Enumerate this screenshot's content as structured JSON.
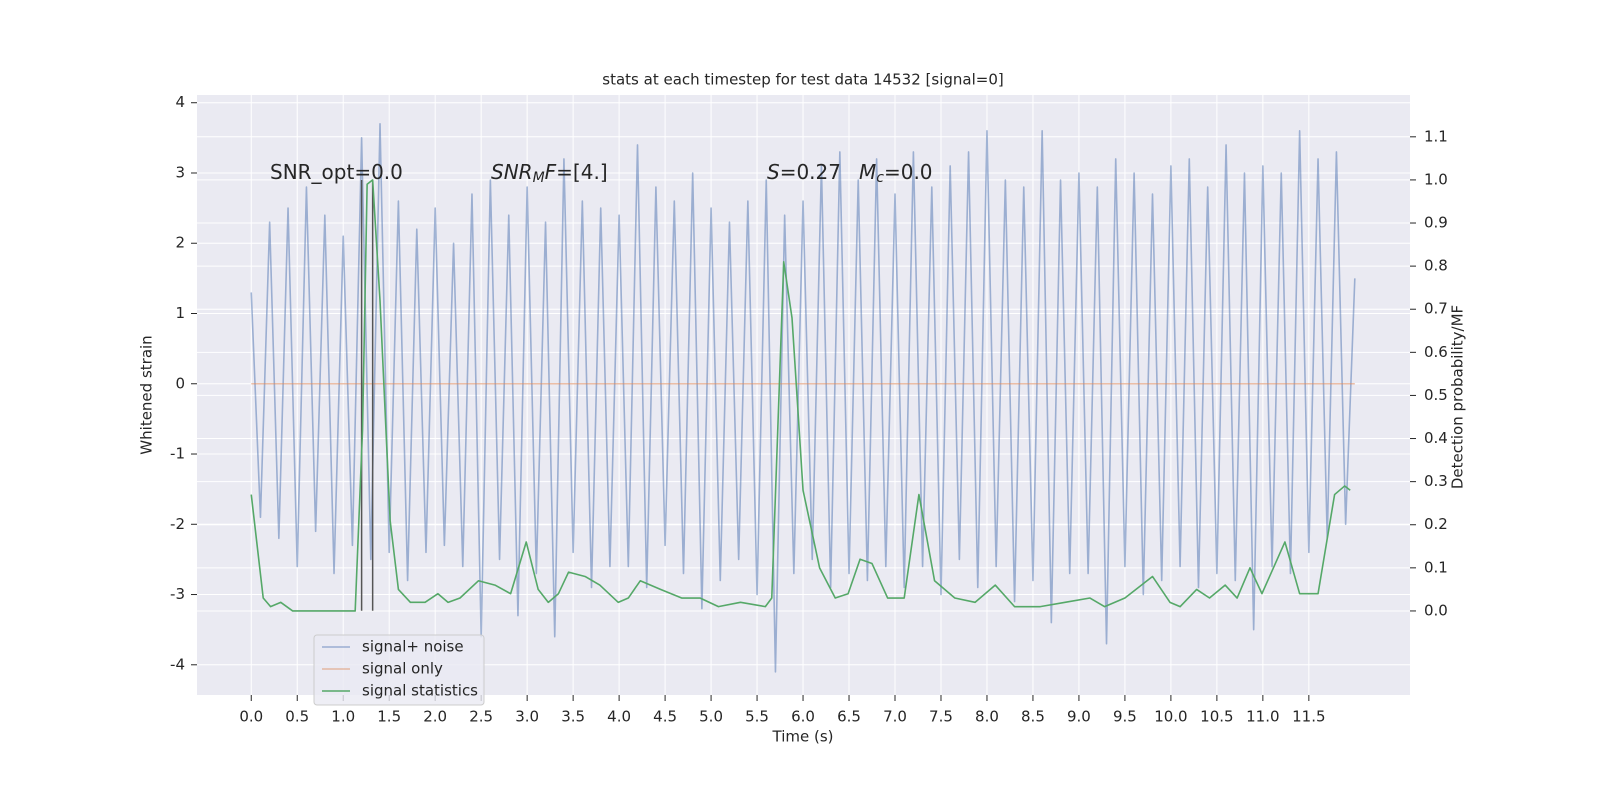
{
  "chart_data": {
    "type": "line",
    "title": "stats at each timestep for test data 14532 [signal=0]",
    "x_label": "Time (s)",
    "y_label": "Whitened strain",
    "y2_label": "Detection probability/MF",
    "xlim": [
      -0.59,
      12.6
    ],
    "ylim": [
      -4.43,
      4.11
    ],
    "y2lim": [
      -0.195,
      1.197
    ],
    "xticks": [
      {
        "value": 0,
        "label": "0.0"
      },
      0.5,
      {
        "value": 1,
        "label": "1.0"
      },
      1.5,
      {
        "value": 2,
        "label": "2.0"
      },
      2.5,
      {
        "value": 3,
        "label": "3.0"
      },
      3.5,
      {
        "value": 4,
        "label": "4.0"
      },
      4.5,
      {
        "value": 5,
        "label": "5.0"
      },
      5.5,
      {
        "value": 6,
        "label": "6.0"
      },
      6.5,
      {
        "value": 7,
        "label": "7.0"
      },
      7.5,
      {
        "value": 8,
        "label": "8.0"
      },
      8.5,
      {
        "value": 9,
        "label": "9.0"
      },
      9.5,
      {
        "value": 10,
        "label": "10.0"
      },
      10.5,
      {
        "value": 11,
        "label": "11.0"
      },
      11.5
    ],
    "yticks": [
      -4,
      -3,
      -2,
      -1,
      0,
      1,
      2,
      3,
      4
    ],
    "y2ticks": [
      {
        "value": 0,
        "label": "0.0"
      },
      0.1,
      0.2,
      0.3,
      0.4,
      0.5,
      0.6,
      0.7,
      0.8,
      0.9,
      {
        "value": 1,
        "label": "1.0"
      },
      1.1
    ],
    "grid": true,
    "legend": "lower left",
    "series": [
      {
        "name": "signal+ noise",
        "color": "#4c72b0",
        "opacity": 0.5,
        "x": [
          0,
          0.1,
          0.2,
          0.3,
          0.4,
          0.5,
          0.6,
          0.7,
          0.8,
          0.9,
          1,
          1.1,
          1.2,
          1.3,
          1.4,
          1.5,
          1.6,
          1.7,
          1.8,
          1.9,
          2,
          2.1,
          2.2,
          2.3,
          2.4,
          2.5,
          2.6,
          2.7,
          2.8,
          2.9,
          3,
          3.1,
          3.2,
          3.3,
          3.4,
          3.5,
          3.6,
          3.7,
          3.8,
          3.9,
          4,
          4.1,
          4.2,
          4.3,
          4.4,
          4.5,
          4.6,
          4.7,
          4.8,
          4.9,
          5,
          5.1,
          5.2,
          5.3,
          5.4,
          5.5,
          5.6,
          5.7,
          5.8,
          5.9,
          6,
          6.1,
          6.2,
          6.3,
          6.4,
          6.5,
          6.6,
          6.7,
          6.8,
          6.9,
          7,
          7.1,
          7.2,
          7.3,
          7.4,
          7.5,
          7.6,
          7.7,
          7.8,
          7.9,
          8,
          8.1,
          8.2,
          8.3,
          8.4,
          8.5,
          8.6,
          8.7,
          8.8,
          8.9,
          9,
          9.1,
          9.2,
          9.3,
          9.4,
          9.5,
          9.6,
          9.7,
          9.8,
          9.9,
          10,
          10.1,
          10.2,
          10.3,
          10.4,
          10.5,
          10.6,
          10.7,
          10.8,
          10.9,
          11,
          11.1,
          11.2,
          11.3,
          11.4,
          11.5,
          11.6,
          11.7,
          11.8,
          11.9,
          12
        ],
        "values": [
          1.3,
          -1.9,
          2.3,
          -2.2,
          2.5,
          -2.6,
          2.8,
          -2.1,
          2.4,
          -2.7,
          2.1,
          -2.3,
          3.5,
          -2.5,
          3.7,
          -2.4,
          2.6,
          -2.8,
          2.2,
          -2.4,
          2.5,
          -2.3,
          2.0,
          -2.6,
          2.7,
          -3.6,
          2.9,
          -2.5,
          2.4,
          -3.3,
          2.8,
          -2.7,
          2.3,
          -3.6,
          3.2,
          -2.4,
          2.6,
          -2.9,
          2.5,
          -2.6,
          2.4,
          -2.6,
          3.4,
          -2.9,
          2.8,
          -2.3,
          2.6,
          -2.7,
          3.0,
          -3.2,
          2.5,
          -2.8,
          2.3,
          -2.5,
          2.6,
          -3.0,
          2.9,
          -4.1,
          2.4,
          -2.7,
          2.6,
          -2.5,
          3.1,
          -2.9,
          3.3,
          -2.7,
          2.9,
          -2.8,
          3.2,
          -2.6,
          2.7,
          -2.9,
          3.3,
          -2.6,
          2.8,
          -3.0,
          3.1,
          -2.5,
          3.3,
          -2.9,
          3.6,
          -2.6,
          2.9,
          -3.1,
          2.8,
          -2.8,
          3.6,
          -3.4,
          2.9,
          -2.7,
          3.0,
          -2.7,
          2.8,
          -3.7,
          3.2,
          -2.6,
          3.0,
          -3.0,
          2.7,
          -2.8,
          3.1,
          -2.6,
          3.2,
          -2.9,
          2.8,
          -2.7,
          3.4,
          -2.8,
          3.0,
          -3.5,
          3.1,
          -2.6,
          3.0,
          -2.7,
          3.6,
          -2.4,
          3.2,
          -2.2,
          3.3,
          -2.0,
          1.5
        ]
      },
      {
        "name": "signal only",
        "color": "#dd8452",
        "opacity": 0.5,
        "x": [
          0,
          12
        ],
        "values": [
          0,
          0
        ]
      },
      {
        "name": "signal statistics",
        "color": "#55a868",
        "opacity": 1,
        "axis": "y2",
        "x": [
          0,
          0.13,
          0.21,
          0.32,
          0.45,
          0.64,
          0.97,
          1.13,
          1.21,
          1.26,
          1.32,
          1.4,
          1.51,
          1.6,
          1.73,
          1.89,
          2.03,
          2.14,
          2.27,
          2.47,
          2.65,
          2.82,
          2.99,
          3.12,
          3.23,
          3.34,
          3.45,
          3.63,
          3.79,
          3.99,
          4.1,
          4.23,
          4.45,
          4.68,
          4.88,
          5.08,
          5.32,
          5.59,
          5.66,
          5.79,
          5.88,
          6.0,
          6.18,
          6.35,
          6.49,
          6.62,
          6.75,
          6.92,
          7.1,
          7.26,
          7.43,
          7.65,
          7.87,
          8.09,
          8.3,
          8.58,
          8.85,
          9.12,
          9.28,
          9.5,
          9.8,
          9.99,
          10.1,
          10.28,
          10.42,
          10.59,
          10.72,
          10.86,
          10.99,
          11.24,
          11.4,
          11.6,
          11.78,
          11.89,
          11.95
        ],
        "values": [
          0.27,
          0.03,
          0.01,
          0.02,
          0.0,
          0.0,
          0.0,
          0.0,
          0.42,
          0.99,
          1.0,
          0.72,
          0.21,
          0.05,
          0.02,
          0.02,
          0.04,
          0.02,
          0.03,
          0.07,
          0.06,
          0.04,
          0.16,
          0.05,
          0.02,
          0.04,
          0.09,
          0.08,
          0.06,
          0.02,
          0.03,
          0.07,
          0.05,
          0.03,
          0.03,
          0.01,
          0.02,
          0.01,
          0.03,
          0.81,
          0.68,
          0.28,
          0.1,
          0.03,
          0.04,
          0.12,
          0.11,
          0.03,
          0.03,
          0.27,
          0.07,
          0.03,
          0.02,
          0.06,
          0.01,
          0.01,
          0.02,
          0.03,
          0.01,
          0.03,
          0.08,
          0.02,
          0.01,
          0.05,
          0.03,
          0.06,
          0.03,
          0.1,
          0.04,
          0.16,
          0.04,
          0.04,
          0.27,
          0.29,
          0.28
        ]
      }
    ],
    "vlines": [
      {
        "x": 1.2,
        "ymin": -3.23,
        "ymax": 2.9,
        "color": "#555555"
      },
      {
        "x": 1.32,
        "ymin": -3.23,
        "ymax": 2.9,
        "color": "#555555"
      }
    ],
    "annotations": [
      {
        "parts": [
          {
            "text": "SNR_opt=0.0",
            "style": "normal"
          }
        ]
      },
      {
        "parts": [
          {
            "text": "SNR",
            "style": "italic"
          },
          {
            "text": "M",
            "style": "sub"
          },
          {
            "text": "F",
            "style": "italic"
          },
          {
            "text": "=[4.]",
            "style": "normal"
          }
        ]
      },
      {
        "parts": [
          {
            "text": "S",
            "style": "italic"
          },
          {
            "text": "=0.27",
            "style": "normal"
          }
        ]
      },
      {
        "parts": [
          {
            "text": "M",
            "style": "italic"
          },
          {
            "text": "c",
            "style": "sub"
          },
          {
            "text": "=0.0",
            "style": "normal"
          }
        ]
      }
    ]
  }
}
